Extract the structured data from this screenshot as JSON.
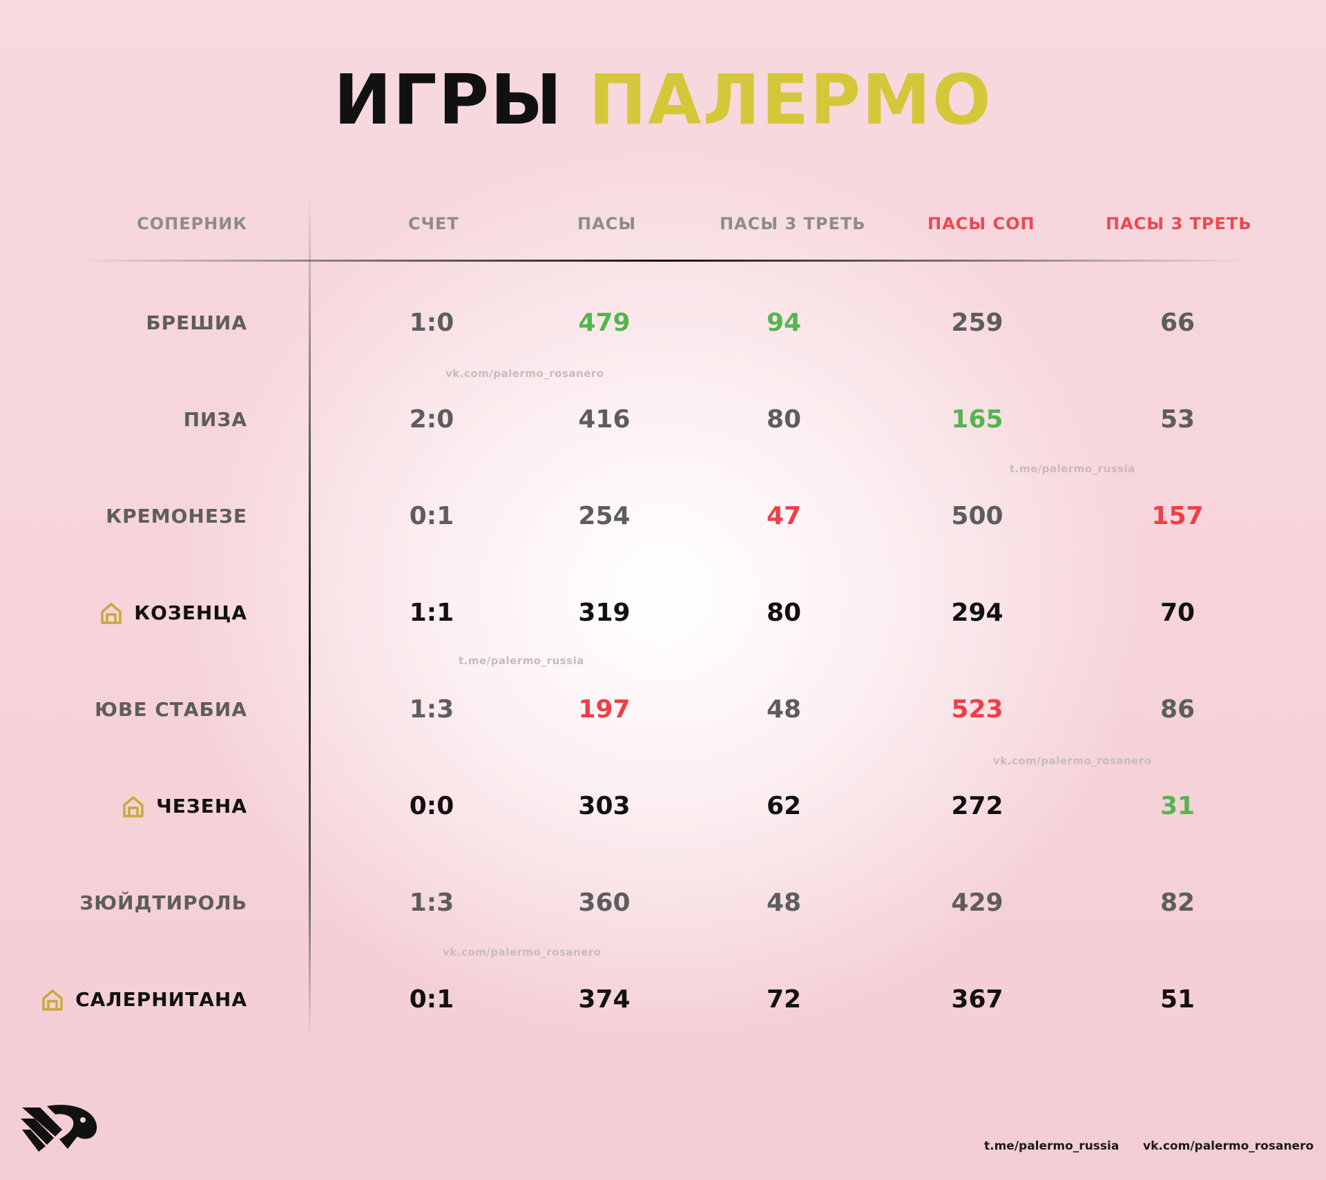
{
  "title": {
    "word1": "ИГРЫ",
    "word2": "ПАЛЕРМО"
  },
  "headers": {
    "opponent": "СОПЕРНИК",
    "score": "СЧЕТ",
    "passes": "ПАСЫ",
    "passes_third": "ПАСЫ 3 ТРЕТЬ",
    "opp_passes": "ПАСЫ СОП",
    "opp_passes_third": "ПАСЫ 3 ТРЕТЬ"
  },
  "colors": {
    "accent": "#d4c83a",
    "good": "#55b550",
    "bad": "#ee3f47",
    "home_icon": "#c9a93a"
  },
  "rows": [
    {
      "team": "БРЕШИА",
      "home": false,
      "score": "1:0",
      "passes": "479",
      "passes_third": "94",
      "opp_passes": "259",
      "opp_passes_third": "66"
    },
    {
      "team": "ПИЗА",
      "home": false,
      "score": "2:0",
      "passes": "416",
      "passes_third": "80",
      "opp_passes": "165",
      "opp_passes_third": "53"
    },
    {
      "team": "КРЕМОНЕЗЕ",
      "home": false,
      "score": "0:1",
      "passes": "254",
      "passes_third": "47",
      "opp_passes": "500",
      "opp_passes_third": "157"
    },
    {
      "team": "КОЗЕНЦА",
      "home": true,
      "score": "1:1",
      "passes": "319",
      "passes_third": "80",
      "opp_passes": "294",
      "opp_passes_third": "70"
    },
    {
      "team": "ЮВЕ СТАБИА",
      "home": false,
      "score": "1:3",
      "passes": "197",
      "passes_third": "48",
      "opp_passes": "523",
      "opp_passes_third": "86"
    },
    {
      "team": "ЧЕЗЕНА",
      "home": true,
      "score": "0:0",
      "passes": "303",
      "passes_third": "62",
      "opp_passes": "272",
      "opp_passes_third": "31"
    },
    {
      "team": "ЗЮЙДТИРОЛЬ",
      "home": false,
      "score": "1:3",
      "passes": "360",
      "passes_third": "48",
      "opp_passes": "429",
      "opp_passes_third": "82"
    },
    {
      "team": "САЛЕРНИТАНА",
      "home": true,
      "score": "0:1",
      "passes": "374",
      "passes_third": "72",
      "opp_passes": "367",
      "opp_passes_third": "51"
    }
  ],
  "watermarks": {
    "vk": "vk.com/palermo_rosanero",
    "tg": "t.me/palermo_russia"
  },
  "footer": {
    "telegram": "t.me/palermo_russia",
    "vk": "vk.com/palermo_rosanero"
  }
}
